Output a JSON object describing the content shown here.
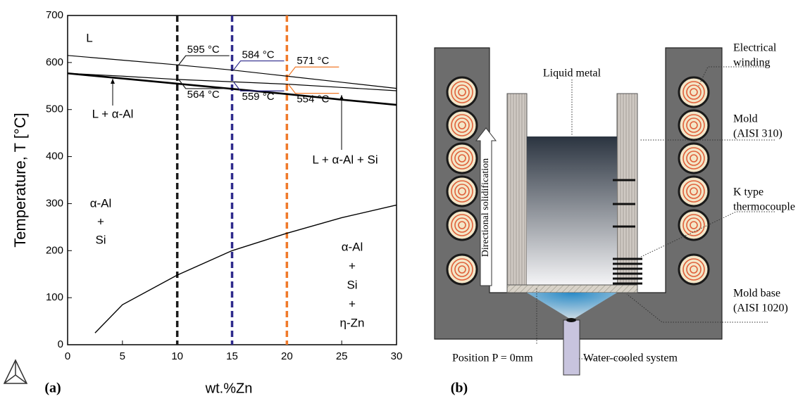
{
  "chart_data": {
    "type": "line",
    "panel_label": "(a)",
    "x_label": "wt.%Zn",
    "y_label": "Temperature, T [°C]",
    "xlim": [
      0,
      30
    ],
    "ylim": [
      0,
      700
    ],
    "xticks": [
      0,
      5,
      10,
      15,
      20,
      25,
      30
    ],
    "yticks": [
      0,
      100,
      200,
      300,
      400,
      500,
      600,
      700
    ],
    "series": [
      {
        "color": "#000000",
        "x": [
          0,
          5,
          10,
          15,
          20,
          25,
          30
        ],
        "values": [
          615,
          605,
          595,
          584,
          571,
          558,
          545
        ]
      },
      {
        "color": "#000000",
        "x": [
          0,
          5,
          10,
          15,
          20,
          25,
          30
        ],
        "values": [
          577,
          571,
          564,
          559,
          554,
          547,
          540
        ]
      },
      {
        "color": "#000000",
        "x": [
          0,
          5,
          10,
          15,
          20,
          25,
          30
        ],
        "values": [
          577,
          566,
          555,
          544,
          533,
          521,
          510
        ]
      },
      {
        "color": "#000000",
        "x": [
          2.5,
          5,
          10,
          15,
          20,
          25,
          30
        ],
        "values": [
          25,
          85,
          148,
          200,
          237,
          270,
          297
        ]
      }
    ],
    "markers": [
      {
        "x": 10,
        "color": "#1a1a1a"
      },
      {
        "x": 15,
        "color": "#2e2a8c"
      },
      {
        "x": 20,
        "color": "#f07a2a"
      }
    ],
    "annotations": [
      {
        "text": "595 °C",
        "x": 10,
        "y": 595,
        "color": "#1a1a1a"
      },
      {
        "text": "584 °C",
        "x": 15,
        "y": 584,
        "color": "#2e2a8c"
      },
      {
        "text": "571 °C",
        "x": 20,
        "y": 571,
        "color": "#f07a2a"
      },
      {
        "text": "564 °C",
        "x": 10,
        "y": 564,
        "color": "#1a1a1a"
      },
      {
        "text": "559 °C",
        "x": 15,
        "y": 559,
        "color": "#2e2a8c"
      },
      {
        "text": "554 °C",
        "x": 20,
        "y": 554,
        "color": "#f07a2a"
      }
    ],
    "regions": [
      {
        "lines": [
          "L"
        ]
      },
      {
        "lines": [
          "L + α-Al"
        ]
      },
      {
        "lines": [
          "L + α-Al + Si"
        ]
      },
      {
        "lines": [
          "α-Al",
          "+",
          "Si"
        ]
      },
      {
        "lines": [
          "α-Al",
          "+",
          "Si",
          "+",
          "η-Zn"
        ]
      }
    ]
  },
  "diagram": {
    "panel_label": "(b)",
    "arrow_label": "Directional solidification",
    "labels": [
      {
        "lines": [
          "Liquid metal"
        ]
      },
      {
        "lines": [
          "Electrical",
          "winding"
        ]
      },
      {
        "lines": [
          "Mold",
          "(AISI 310)"
        ]
      },
      {
        "lines": [
          "K type",
          "thermocouple"
        ]
      },
      {
        "lines": [
          "Mold base",
          "(AISI 1020)"
        ]
      },
      {
        "lines": [
          "Position P = 0mm"
        ]
      },
      {
        "lines": [
          "Water-cooled system"
        ]
      }
    ]
  }
}
